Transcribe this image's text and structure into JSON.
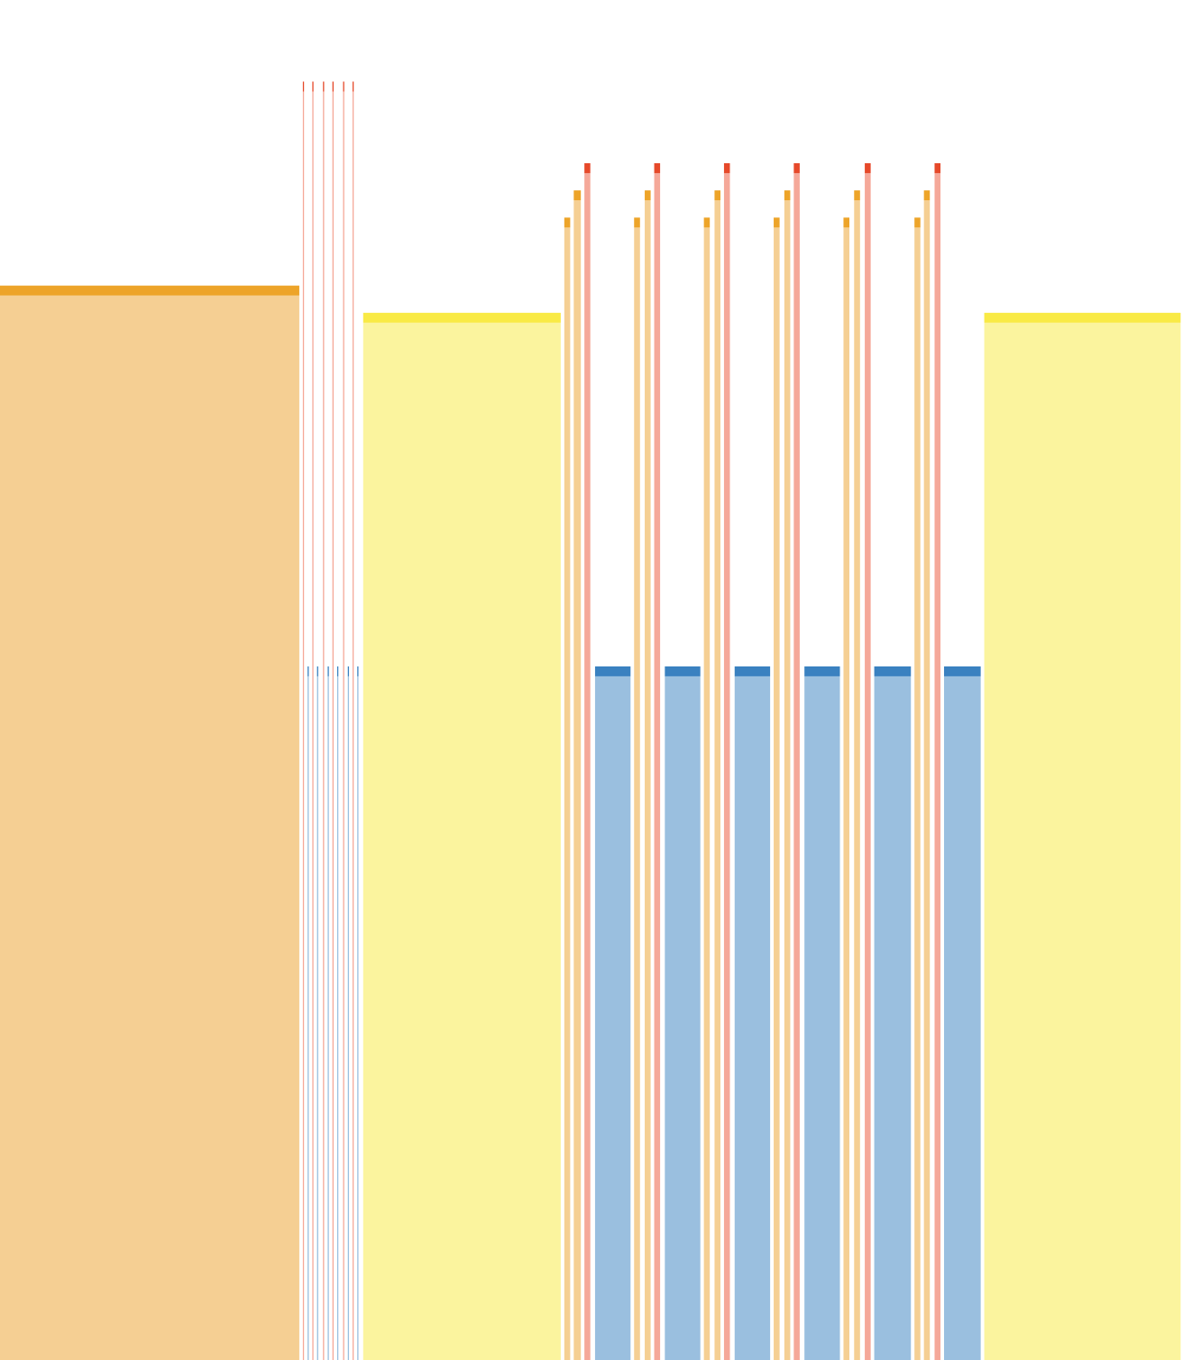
{
  "palette": {
    "orange": {
      "fill": "#F5CF93",
      "cap": "#EDA429"
    },
    "yellow": {
      "fill": "#FBF49E",
      "cap": "#F9EA45"
    },
    "blue": {
      "fill": "#9ABFDF",
      "cap": "#3A81C0"
    },
    "red": {
      "fill": "#F5A899",
      "cap": "#E6492A"
    }
  },
  "chart_data": {
    "type": "bar",
    "title": "",
    "xlabel": "",
    "ylabel": "",
    "grid": false,
    "legend": "none",
    "ylim": [
      0,
      1
    ],
    "bars": [
      {
        "group": "left-block",
        "color": "orange",
        "start": 0.0,
        "end": 0.253,
        "value": 0.79
      },
      {
        "group": "thin-red",
        "color": "red",
        "start": 0.256,
        "end": 0.257,
        "value": 0.94
      },
      {
        "group": "thin-red",
        "color": "red",
        "start": 0.264,
        "end": 0.265,
        "value": 0.94
      },
      {
        "group": "thin-red",
        "color": "red",
        "start": 0.273,
        "end": 0.274,
        "value": 0.94
      },
      {
        "group": "thin-red",
        "color": "red",
        "start": 0.281,
        "end": 0.282,
        "value": 0.94
      },
      {
        "group": "thin-red",
        "color": "red",
        "start": 0.29,
        "end": 0.291,
        "value": 0.94
      },
      {
        "group": "thin-red",
        "color": "red",
        "start": 0.298,
        "end": 0.299,
        "value": 0.94
      },
      {
        "group": "thin-blue",
        "color": "blue",
        "start": 0.26,
        "end": 0.261,
        "value": 0.51
      },
      {
        "group": "thin-blue",
        "color": "blue",
        "start": 0.268,
        "end": 0.269,
        "value": 0.51
      },
      {
        "group": "thin-blue",
        "color": "blue",
        "start": 0.277,
        "end": 0.278,
        "value": 0.51
      },
      {
        "group": "thin-blue",
        "color": "blue",
        "start": 0.285,
        "end": 0.286,
        "value": 0.51
      },
      {
        "group": "thin-blue",
        "color": "blue",
        "start": 0.294,
        "end": 0.295,
        "value": 0.51
      },
      {
        "group": "thin-blue",
        "color": "blue",
        "start": 0.302,
        "end": 0.303,
        "value": 0.51
      },
      {
        "group": "mid-block",
        "color": "yellow",
        "start": 0.307,
        "end": 0.474,
        "value": 0.77
      },
      {
        "group": "triplet-1",
        "color": "orange",
        "start": 0.477,
        "end": 0.482,
        "value": 0.84
      },
      {
        "group": "triplet-1",
        "color": "orange",
        "start": 0.485,
        "end": 0.491,
        "value": 0.86
      },
      {
        "group": "triplet-1",
        "color": "red",
        "start": 0.494,
        "end": 0.499,
        "value": 0.88
      },
      {
        "group": "blue-1",
        "color": "blue",
        "start": 0.503,
        "end": 0.533,
        "value": 0.51
      },
      {
        "group": "triplet-2",
        "color": "orange",
        "start": 0.536,
        "end": 0.541,
        "value": 0.84
      },
      {
        "group": "triplet-2",
        "color": "orange",
        "start": 0.545,
        "end": 0.55,
        "value": 0.86
      },
      {
        "group": "triplet-2",
        "color": "red",
        "start": 0.553,
        "end": 0.558,
        "value": 0.88
      },
      {
        "group": "blue-2",
        "color": "blue",
        "start": 0.562,
        "end": 0.592,
        "value": 0.51
      },
      {
        "group": "triplet-3",
        "color": "orange",
        "start": 0.595,
        "end": 0.6,
        "value": 0.84
      },
      {
        "group": "triplet-3",
        "color": "orange",
        "start": 0.604,
        "end": 0.609,
        "value": 0.86
      },
      {
        "group": "triplet-3",
        "color": "red",
        "start": 0.612,
        "end": 0.617,
        "value": 0.88
      },
      {
        "group": "blue-3",
        "color": "blue",
        "start": 0.621,
        "end": 0.651,
        "value": 0.51
      },
      {
        "group": "triplet-4",
        "color": "orange",
        "start": 0.654,
        "end": 0.659,
        "value": 0.84
      },
      {
        "group": "triplet-4",
        "color": "orange",
        "start": 0.663,
        "end": 0.668,
        "value": 0.86
      },
      {
        "group": "triplet-4",
        "color": "red",
        "start": 0.671,
        "end": 0.676,
        "value": 0.88
      },
      {
        "group": "blue-4",
        "color": "blue",
        "start": 0.68,
        "end": 0.71,
        "value": 0.51
      },
      {
        "group": "triplet-5",
        "color": "orange",
        "start": 0.713,
        "end": 0.718,
        "value": 0.84
      },
      {
        "group": "triplet-5",
        "color": "orange",
        "start": 0.722,
        "end": 0.727,
        "value": 0.86
      },
      {
        "group": "triplet-5",
        "color": "red",
        "start": 0.731,
        "end": 0.736,
        "value": 0.88
      },
      {
        "group": "blue-5",
        "color": "blue",
        "start": 0.739,
        "end": 0.77,
        "value": 0.51
      },
      {
        "group": "triplet-6",
        "color": "orange",
        "start": 0.773,
        "end": 0.778,
        "value": 0.84
      },
      {
        "group": "triplet-6",
        "color": "orange",
        "start": 0.781,
        "end": 0.786,
        "value": 0.86
      },
      {
        "group": "triplet-6",
        "color": "red",
        "start": 0.79,
        "end": 0.795,
        "value": 0.88
      },
      {
        "group": "blue-6",
        "color": "blue",
        "start": 0.798,
        "end": 0.829,
        "value": 0.51
      },
      {
        "group": "right-block",
        "color": "yellow",
        "start": 0.832,
        "end": 0.998,
        "value": 0.77
      }
    ]
  }
}
